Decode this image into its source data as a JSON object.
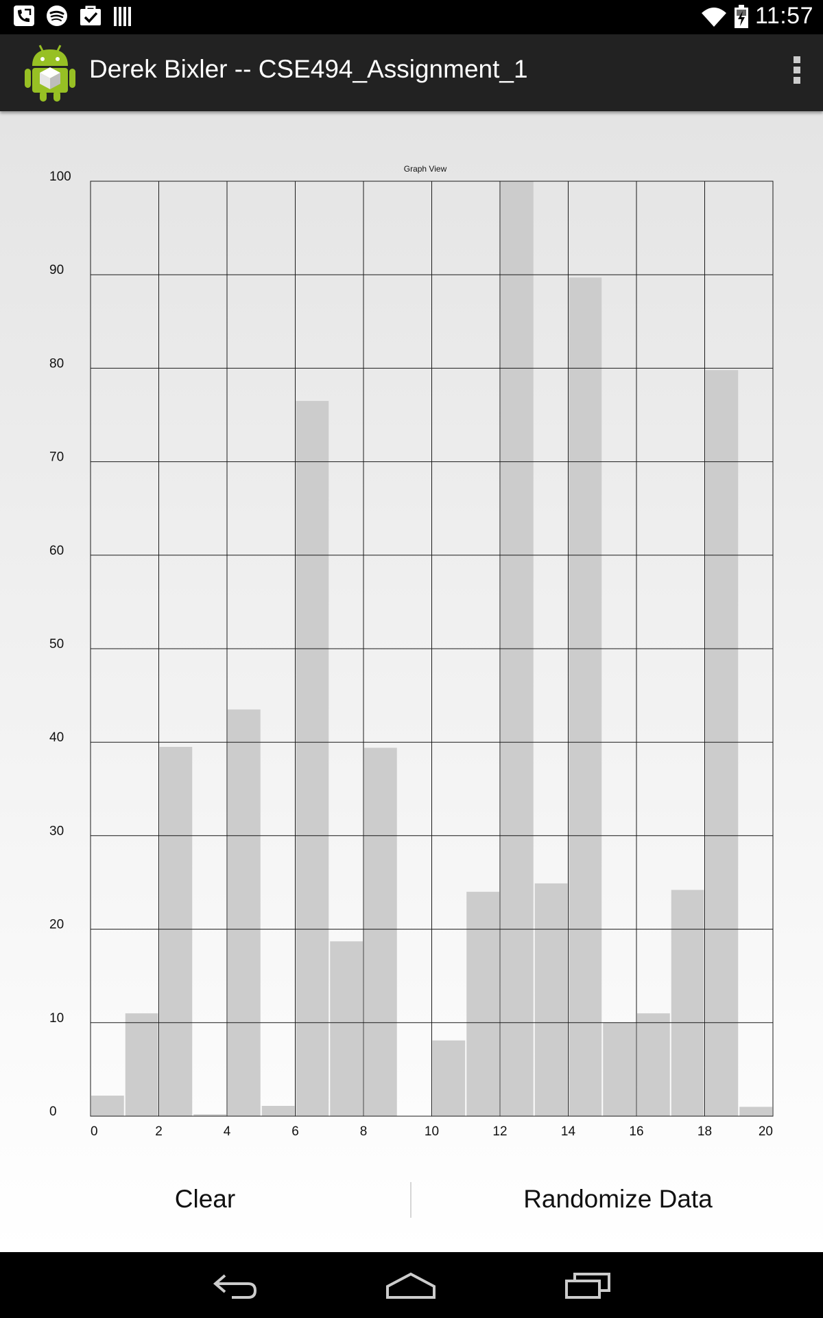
{
  "status_bar": {
    "time": "11:57",
    "notification_icons": [
      "missed-call-icon",
      "spotify-icon",
      "task-done-icon",
      "barcode-icon"
    ],
    "system_icons": [
      "wifi-icon",
      "battery-charging-icon"
    ]
  },
  "action_bar": {
    "title": "Derek Bixler -- CSE494_Assignment_1",
    "app_icon": "android-robot-icon",
    "overflow_icon": "overflow-menu-icon"
  },
  "colors": {
    "bar_fill": "#cccccc",
    "grid_line": "#1a1a1a",
    "action_bar_bg": "#222222",
    "status_bar_bg": "#000000"
  },
  "chart_data": {
    "type": "bar",
    "title": "Graph View",
    "xlabel": "",
    "ylabel": "",
    "xlim": [
      0,
      20
    ],
    "ylim": [
      0,
      100
    ],
    "x_ticks": [
      "0",
      "2",
      "4",
      "6",
      "8",
      "10",
      "12",
      "14",
      "16",
      "18",
      "20"
    ],
    "y_ticks": [
      "0",
      "10",
      "20",
      "30",
      "40",
      "50",
      "60",
      "70",
      "80",
      "90",
      "100"
    ],
    "grid": true,
    "x": [
      0,
      1,
      2,
      3,
      4,
      5,
      6,
      7,
      8,
      9,
      10,
      11,
      12,
      13,
      14,
      15,
      16,
      17,
      18,
      19
    ],
    "values": [
      2.2,
      11,
      39.5,
      0.2,
      43.5,
      1.1,
      76.5,
      18.7,
      39.4,
      0,
      8.1,
      24,
      100,
      24.9,
      89.7,
      10,
      11,
      24.2,
      79.8,
      1
    ]
  },
  "buttons": {
    "clear": "Clear",
    "randomize": "Randomize Data"
  },
  "nav_bar": {
    "back": "back-icon",
    "home": "home-icon",
    "recents": "recents-icon"
  }
}
